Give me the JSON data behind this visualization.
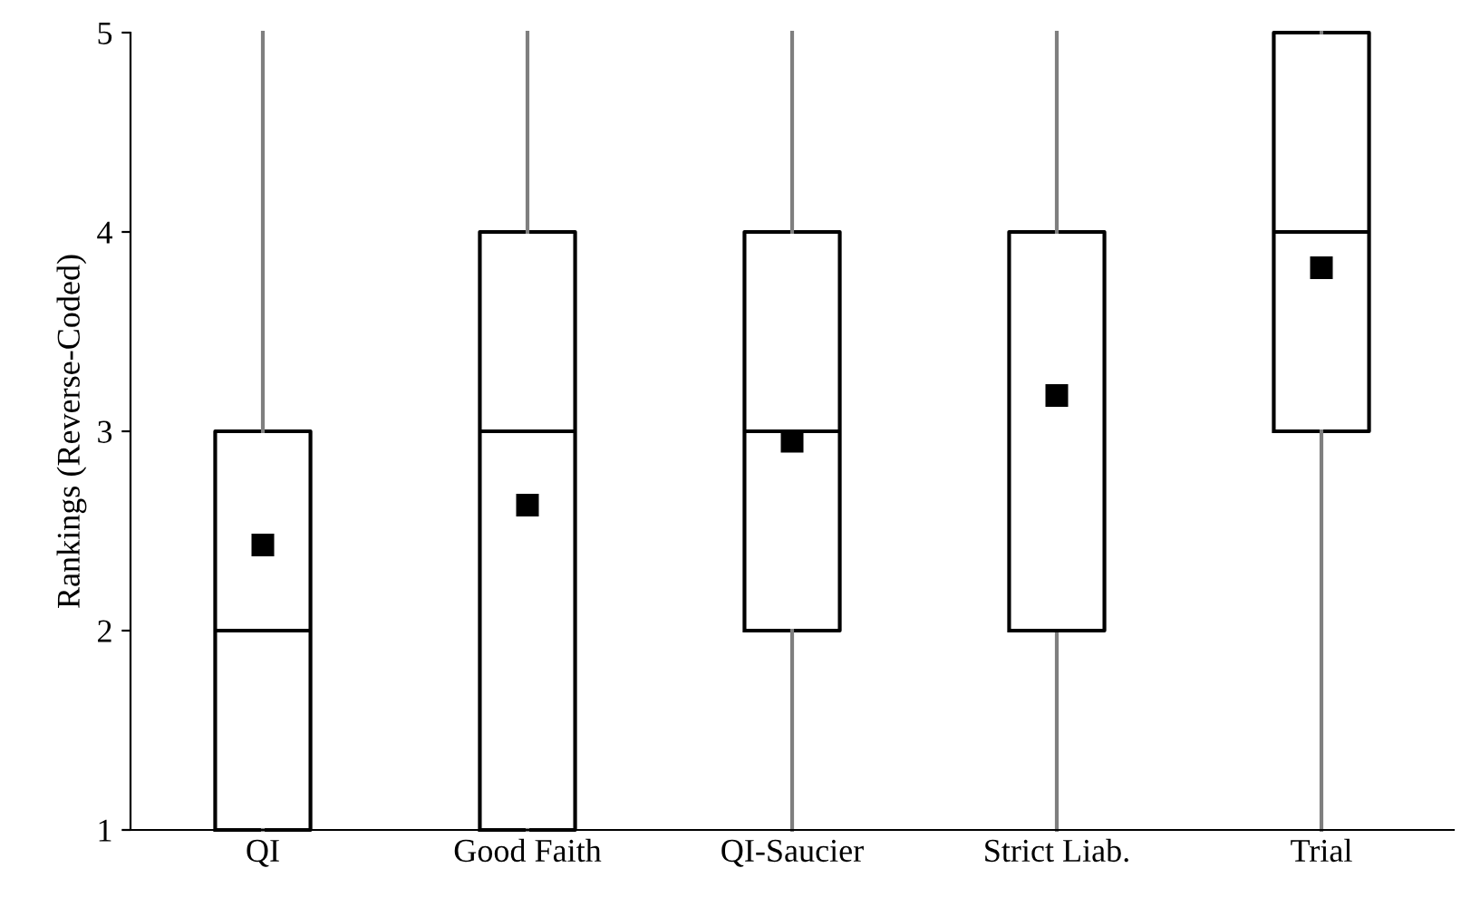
{
  "chart_data": {
    "type": "box",
    "ylabel": "Rankings (Reverse-Coded)",
    "categories": [
      "QI",
      "Good Faith",
      "QI-Saucier",
      "Strict Liab.",
      "Trial"
    ],
    "boxes": [
      {
        "low": 1,
        "q1": 1,
        "median": 2,
        "q3": 3,
        "high": 5,
        "mean": 2.43
      },
      {
        "low": 1,
        "q1": 1,
        "median": 3,
        "q3": 4,
        "high": 5,
        "mean": 2.63
      },
      {
        "low": 1,
        "q1": 2,
        "median": 3,
        "q3": 4,
        "high": 5,
        "mean": 2.95
      },
      {
        "low": 1,
        "q1": 2,
        "median": 2,
        "q3": 4,
        "high": 5,
        "mean": 3.18
      },
      {
        "low": 1,
        "q1": 3,
        "median": 4,
        "q3": 5,
        "high": 5,
        "mean": 3.82
      }
    ],
    "ylim": [
      1,
      5
    ],
    "yticks": [
      1,
      2,
      3,
      4,
      5
    ],
    "grid": false,
    "marker": "square"
  }
}
